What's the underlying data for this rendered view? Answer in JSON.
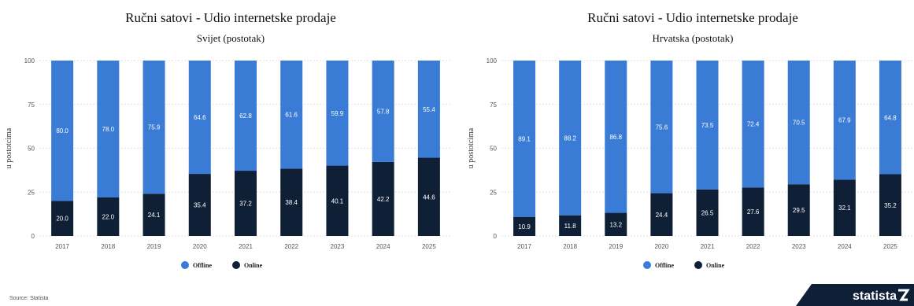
{
  "colors": {
    "offline": "#3a7bd5",
    "online": "#0f1f35"
  },
  "footer": {
    "source": "Source: Statista",
    "brand": "statista"
  },
  "chart_data": [
    {
      "type": "bar",
      "stacked": true,
      "title": "Ručni satovi  - Udio internetske prodaje",
      "subtitle": "Svijet (postotak)",
      "ylabel": "u postotcima",
      "ylim": [
        0,
        100
      ],
      "yticks": [
        0,
        25,
        50,
        75,
        100
      ],
      "grid": true,
      "legend_position": "bottom",
      "categories": [
        "2017",
        "2018",
        "2019",
        "2020",
        "2021",
        "2022",
        "2023",
        "2024",
        "2025"
      ],
      "series": [
        {
          "name": "Online",
          "color": "#0f1f35",
          "labels": [
            "20.0",
            "22.0",
            "24.1",
            "35.4",
            "37.2",
            "38.4",
            "40.1",
            "42.2",
            "44.6"
          ],
          "values": [
            20.0,
            22.0,
            24.1,
            35.4,
            37.2,
            38.4,
            40.1,
            42.2,
            44.6
          ]
        },
        {
          "name": "Offline",
          "color": "#3a7bd5",
          "labels": [
            "80.0",
            "78.0",
            "75.9",
            "64.6",
            "62.8",
            "61.6",
            "59.9",
            "57.8",
            "55.4"
          ],
          "values": [
            80.0,
            78.0,
            75.9,
            64.6,
            62.8,
            61.6,
            59.9,
            57.8,
            55.4
          ]
        }
      ],
      "legend": [
        "Offline",
        "Online"
      ]
    },
    {
      "type": "bar",
      "stacked": true,
      "title": "Ručni satovi  - Udio internetske prodaje",
      "subtitle": "Hrvatska (postotak)",
      "ylabel": "u postotcima",
      "ylim": [
        0,
        100
      ],
      "yticks": [
        0,
        25,
        50,
        75,
        100
      ],
      "grid": true,
      "legend_position": "bottom",
      "categories": [
        "2017",
        "2018",
        "2019",
        "2020",
        "2021",
        "2022",
        "2023",
        "2024",
        "2025"
      ],
      "series": [
        {
          "name": "Online",
          "color": "#0f1f35",
          "labels": [
            "10.9",
            "11.8",
            "13.2",
            "24.4",
            "26.5",
            "27.6",
            "29.5",
            "32.1",
            "35.2"
          ],
          "values": [
            10.9,
            11.8,
            13.2,
            24.4,
            26.5,
            27.6,
            29.5,
            32.1,
            35.2
          ]
        },
        {
          "name": "Offline",
          "color": "#3a7bd5",
          "labels": [
            "89.1",
            "88.2",
            "86.8",
            "75.6",
            "73.5",
            "72.4",
            "70.5",
            "67.9",
            "64.8"
          ],
          "values": [
            89.1,
            88.2,
            86.8,
            75.6,
            73.5,
            72.4,
            70.5,
            67.9,
            64.8
          ]
        }
      ],
      "legend": [
        "Offline",
        "Online"
      ]
    }
  ]
}
